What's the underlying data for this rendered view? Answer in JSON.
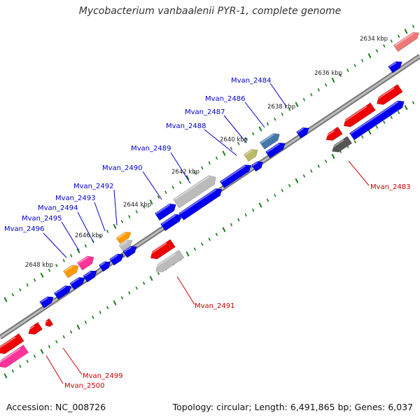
{
  "title": "Mycobacterium vanbaalenii PYR-1, complete genome",
  "footer": {
    "accession": "Accession: NC_008726",
    "summary": "Topology: circular; Length: 6,491,865 bp; Genes: 6,037"
  },
  "colors": {
    "forward_label": "#0000cc",
    "reverse_label": "#cc0000",
    "blue_gene": "#0000ee",
    "red_gene": "#ee0000",
    "pink_gene": "#ff3399",
    "orange_gene": "#ff9900",
    "grey_gene": "#bbbbbb",
    "dark_grey_gene": "#555555",
    "olive_gene": "#bbbb66",
    "steel_gene": "#4477aa",
    "salmon_gene": "#ee7777",
    "tick_color": "#1a7a1a",
    "backbone": "#888888"
  },
  "kbp_labels": [
    "2634 kbp",
    "2636 kbp",
    "2638 kbp",
    "2640 kbp",
    "2642 kbp",
    "2644 kbp",
    "2646 kbp",
    "2648 kbp"
  ],
  "forward_gene_labels": [
    "Mvan_2484",
    "Mvan_2486",
    "Mvan_2487",
    "Mvan_2488",
    "Mvan_2489",
    "Mvan_2490",
    "Mvan_2492",
    "Mvan_2493",
    "Mvan_2494",
    "Mvan_2495",
    "Mvan_2496"
  ],
  "reverse_gene_labels": [
    "Mvan_2483",
    "Mvan_2491",
    "Mvan_2499",
    "Mvan_2500"
  ]
}
